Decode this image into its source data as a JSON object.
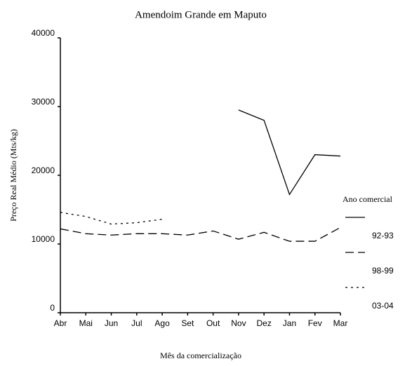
{
  "chart_data": {
    "type": "line",
    "title": "Amendoim Grande em Maputo",
    "y_label": "Preço Real Médio (Mts/kg)",
    "x_label": "Mês da comercialização",
    "legend_title": "Ano comercial",
    "legend_position": "right",
    "categories": [
      "Abr",
      "Mai",
      "Jun",
      "Jul",
      "Ago",
      "Set",
      "Out",
      "Nov",
      "Dez",
      "Jan",
      "Fev",
      "Mar"
    ],
    "series": [
      {
        "name": "92-93",
        "color": "#000000",
        "dash": "solid",
        "values": [
          null,
          null,
          null,
          null,
          null,
          null,
          null,
          29500,
          28000,
          17200,
          23000,
          22800
        ]
      },
      {
        "name": "98-99",
        "color": "#000000",
        "dash": "dashed",
        "values": [
          12200,
          11500,
          11300,
          11500,
          11500,
          11300,
          11900,
          10700,
          11700,
          10400,
          10400,
          12400
        ]
      },
      {
        "name": "03-04",
        "color": "#000000",
        "dash": "dotted",
        "values": [
          14600,
          14000,
          12900,
          13100,
          13600,
          null,
          null,
          null,
          null,
          null,
          null,
          null
        ]
      }
    ],
    "ylim": [
      0,
      40000
    ],
    "yticks": [
      0,
      10000,
      20000,
      30000,
      40000
    ],
    "grid": false
  }
}
